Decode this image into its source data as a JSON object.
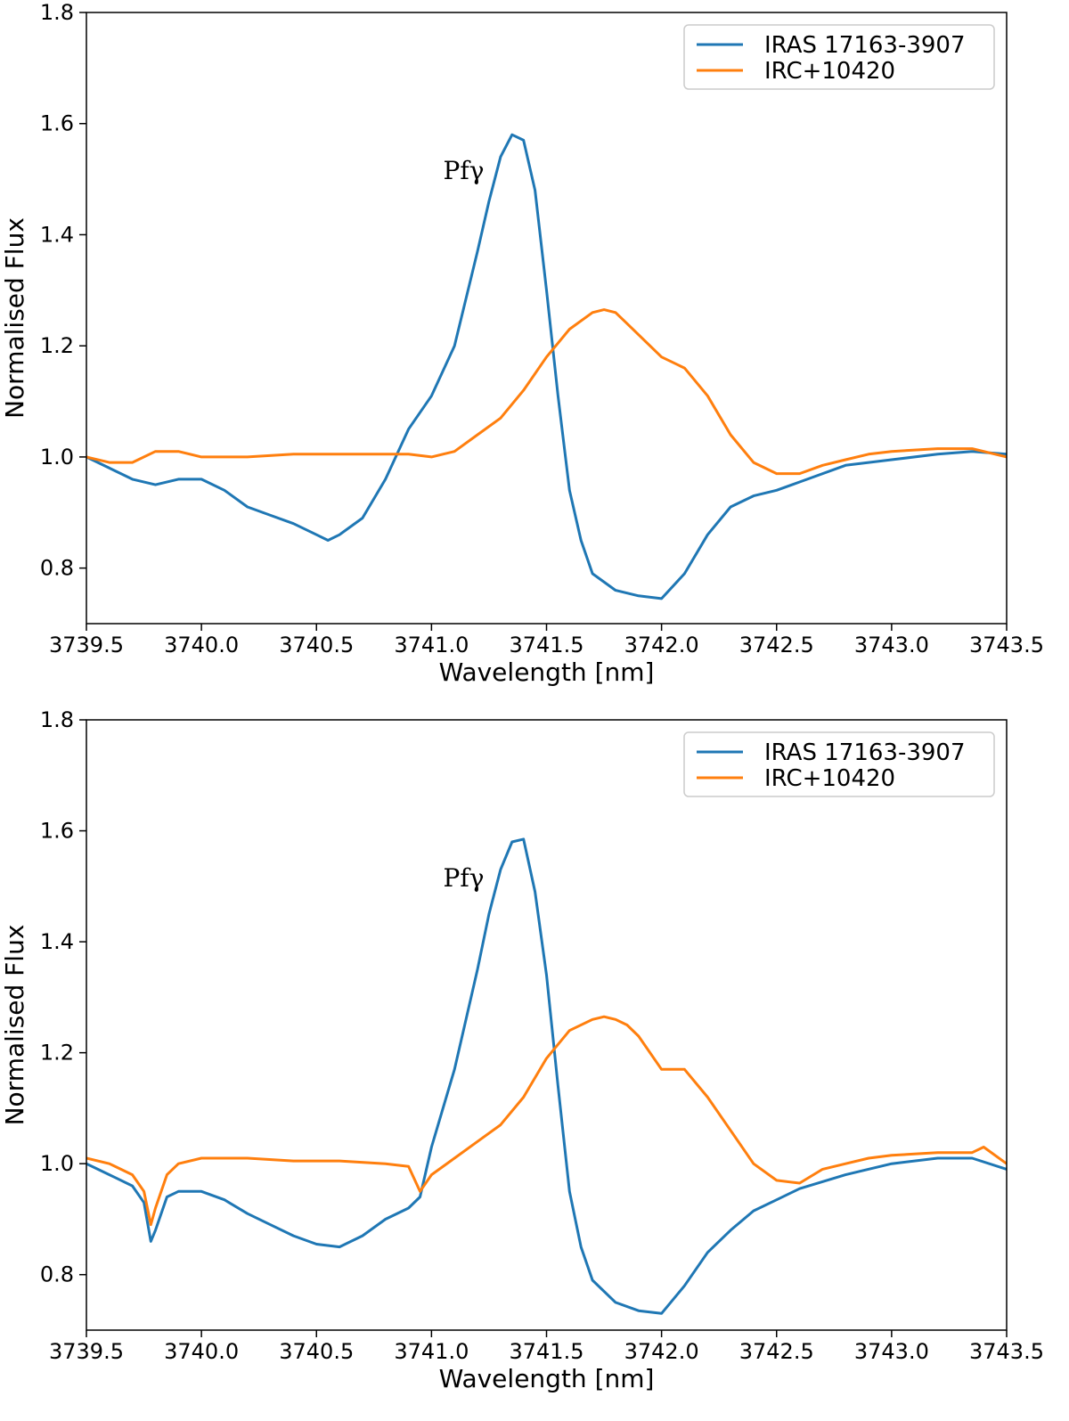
{
  "chart_data": [
    {
      "type": "line",
      "title": "",
      "xlabel": "Wavelength [nm]",
      "ylabel": "Normalised Flux",
      "xlim": [
        3739.5,
        3743.5
      ],
      "ylim": [
        0.7,
        1.8
      ],
      "xticks": [
        3739.5,
        3740.0,
        3740.5,
        3741.0,
        3741.5,
        3742.0,
        3742.5,
        3743.0,
        3743.5
      ],
      "xtick_labels": [
        "3739.5",
        "3740.0",
        "3740.5",
        "3741.0",
        "3741.5",
        "3742.0",
        "3742.5",
        "3743.0",
        "3743.5"
      ],
      "yticks": [
        0.8,
        1.0,
        1.2,
        1.4,
        1.6,
        1.8
      ],
      "ytick_labels": [
        "0.8",
        "1.0",
        "1.2",
        "1.4",
        "1.6",
        "1.8"
      ],
      "grid": false,
      "legend_position": "top-right",
      "annotation": {
        "text": "Pfγ",
        "x": 3741.14,
        "y": 1.5
      },
      "series": [
        {
          "name": "IRAS 17163-3907",
          "color": "#1f77b4",
          "x": [
            3739.5,
            3739.6,
            3739.7,
            3739.8,
            3739.9,
            3740.0,
            3740.1,
            3740.2,
            3740.3,
            3740.4,
            3740.5,
            3740.55,
            3740.6,
            3740.7,
            3740.8,
            3740.9,
            3741.0,
            3741.1,
            3741.2,
            3741.25,
            3741.3,
            3741.35,
            3741.4,
            3741.45,
            3741.5,
            3741.55,
            3741.6,
            3741.65,
            3741.7,
            3741.8,
            3741.9,
            3742.0,
            3742.1,
            3742.2,
            3742.3,
            3742.4,
            3742.5,
            3742.6,
            3742.8,
            3743.0,
            3743.2,
            3743.35,
            3743.5
          ],
          "y": [
            1.0,
            0.98,
            0.96,
            0.95,
            0.96,
            0.96,
            0.94,
            0.91,
            0.895,
            0.88,
            0.86,
            0.85,
            0.86,
            0.89,
            0.96,
            1.05,
            1.11,
            1.2,
            1.37,
            1.46,
            1.54,
            1.58,
            1.57,
            1.48,
            1.3,
            1.11,
            0.94,
            0.85,
            0.79,
            0.76,
            0.75,
            0.745,
            0.79,
            0.86,
            0.91,
            0.93,
            0.94,
            0.955,
            0.985,
            0.995,
            1.005,
            1.01,
            1.005
          ]
        },
        {
          "name": "IRC+10420",
          "color": "#ff7f0e",
          "x": [
            3739.5,
            3739.6,
            3739.7,
            3739.8,
            3739.9,
            3740.0,
            3740.2,
            3740.4,
            3740.6,
            3740.8,
            3740.9,
            3741.0,
            3741.1,
            3741.2,
            3741.3,
            3741.4,
            3741.5,
            3741.6,
            3741.7,
            3741.75,
            3741.8,
            3741.85,
            3741.9,
            3742.0,
            3742.1,
            3742.2,
            3742.3,
            3742.4,
            3742.5,
            3742.6,
            3742.7,
            3742.8,
            3742.9,
            3743.0,
            3743.2,
            3743.35,
            3743.5
          ],
          "y": [
            1.0,
            0.99,
            0.99,
            1.01,
            1.01,
            1.0,
            1.0,
            1.005,
            1.005,
            1.005,
            1.005,
            1.0,
            1.01,
            1.04,
            1.07,
            1.12,
            1.18,
            1.23,
            1.26,
            1.265,
            1.26,
            1.24,
            1.22,
            1.18,
            1.16,
            1.11,
            1.04,
            0.99,
            0.97,
            0.97,
            0.985,
            0.995,
            1.005,
            1.01,
            1.015,
            1.015,
            1.0
          ]
        }
      ]
    },
    {
      "type": "line",
      "title": "",
      "xlabel": "Wavelength [nm]",
      "ylabel": "Normalised Flux",
      "xlim": [
        3739.5,
        3743.5
      ],
      "ylim": [
        0.7,
        1.8
      ],
      "xticks": [
        3739.5,
        3740.0,
        3740.5,
        3741.0,
        3741.5,
        3742.0,
        3742.5,
        3743.0,
        3743.5
      ],
      "xtick_labels": [
        "3739.5",
        "3740.0",
        "3740.5",
        "3741.0",
        "3741.5",
        "3742.0",
        "3742.5",
        "3743.0",
        "3743.5"
      ],
      "yticks": [
        0.8,
        1.0,
        1.2,
        1.4,
        1.6,
        1.8
      ],
      "ytick_labels": [
        "0.8",
        "1.0",
        "1.2",
        "1.4",
        "1.6",
        "1.8"
      ],
      "grid": false,
      "legend_position": "top-right",
      "annotation": {
        "text": "Pfγ",
        "x": 3741.14,
        "y": 1.5
      },
      "series": [
        {
          "name": "IRAS 17163-3907",
          "color": "#1f77b4",
          "x": [
            3739.5,
            3739.6,
            3739.7,
            3739.75,
            3739.78,
            3739.8,
            3739.85,
            3739.9,
            3740.0,
            3740.1,
            3740.2,
            3740.3,
            3740.4,
            3740.5,
            3740.6,
            3740.7,
            3740.8,
            3740.9,
            3740.95,
            3741.0,
            3741.1,
            3741.2,
            3741.25,
            3741.3,
            3741.35,
            3741.4,
            3741.45,
            3741.5,
            3741.55,
            3741.6,
            3741.65,
            3741.7,
            3741.8,
            3741.9,
            3742.0,
            3742.1,
            3742.2,
            3742.3,
            3742.4,
            3742.5,
            3742.6,
            3742.8,
            3743.0,
            3743.2,
            3743.35,
            3743.5
          ],
          "y": [
            1.0,
            0.98,
            0.96,
            0.93,
            0.86,
            0.88,
            0.94,
            0.95,
            0.95,
            0.935,
            0.91,
            0.89,
            0.87,
            0.855,
            0.85,
            0.87,
            0.9,
            0.92,
            0.94,
            1.03,
            1.17,
            1.35,
            1.45,
            1.53,
            1.58,
            1.585,
            1.49,
            1.34,
            1.14,
            0.95,
            0.85,
            0.79,
            0.75,
            0.735,
            0.73,
            0.78,
            0.84,
            0.88,
            0.915,
            0.935,
            0.955,
            0.98,
            1.0,
            1.01,
            1.01,
            0.99
          ]
        },
        {
          "name": "IRC+10420",
          "color": "#ff7f0e",
          "x": [
            3739.5,
            3739.6,
            3739.7,
            3739.75,
            3739.78,
            3739.8,
            3739.85,
            3739.9,
            3740.0,
            3740.2,
            3740.4,
            3740.6,
            3740.8,
            3740.9,
            3740.95,
            3741.0,
            3741.1,
            3741.2,
            3741.3,
            3741.4,
            3741.5,
            3741.6,
            3741.7,
            3741.75,
            3741.8,
            3741.85,
            3741.9,
            3742.0,
            3742.1,
            3742.2,
            3742.3,
            3742.4,
            3742.5,
            3742.6,
            3742.7,
            3742.8,
            3742.9,
            3743.0,
            3743.2,
            3743.35,
            3743.4,
            3743.5
          ],
          "y": [
            1.01,
            1.0,
            0.98,
            0.95,
            0.89,
            0.92,
            0.98,
            1.0,
            1.01,
            1.01,
            1.005,
            1.005,
            1.0,
            0.995,
            0.95,
            0.98,
            1.01,
            1.04,
            1.07,
            1.12,
            1.19,
            1.24,
            1.26,
            1.265,
            1.26,
            1.25,
            1.23,
            1.17,
            1.17,
            1.12,
            1.06,
            1.0,
            0.97,
            0.965,
            0.99,
            1.0,
            1.01,
            1.015,
            1.02,
            1.02,
            1.03,
            1.0
          ]
        }
      ]
    }
  ]
}
